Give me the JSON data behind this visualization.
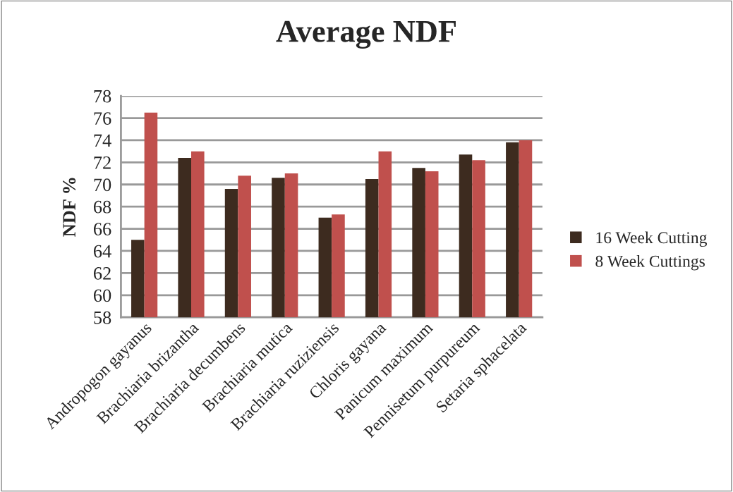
{
  "chart_data": {
    "type": "bar",
    "title": "Average NDF",
    "ylabel": "NDF %",
    "categories": [
      "Andropogon gayanus",
      "Brachiaria brizantha",
      "Brachiaria decumbens",
      "Brachiaria mutica",
      "Brachiaria ruziziensis",
      "Chloris gayana",
      "Panicum maximum",
      "Pennisetum purpureum",
      "Setaria sphacelata"
    ],
    "series": [
      {
        "name": "16 Week Cutting",
        "color": "#3d2b1f",
        "values": [
          65.0,
          72.4,
          69.6,
          70.6,
          67.0,
          70.5,
          71.5,
          72.7,
          73.8
        ]
      },
      {
        "name": "8 Week Cuttings",
        "color": "#c0504d",
        "values": [
          76.5,
          73.0,
          70.8,
          71.0,
          67.3,
          73.0,
          71.2,
          72.2,
          74.0
        ]
      }
    ],
    "ylim": [
      58,
      78
    ],
    "yticks": [
      58,
      60,
      62,
      64,
      66,
      68,
      70,
      72,
      74,
      76,
      78
    ],
    "grid": "y",
    "legend": "right"
  }
}
